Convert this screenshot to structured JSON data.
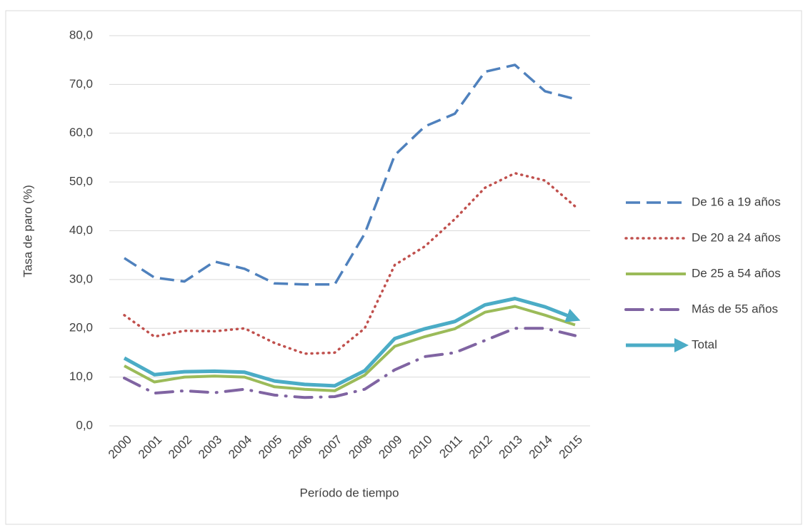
{
  "chart_data": {
    "type": "line",
    "y_label": "Tasa de paro (%)",
    "x_label": "Período de tiempo",
    "categories": [
      "2000",
      "2001",
      "2002",
      "2003",
      "2004",
      "2005",
      "2006",
      "2007",
      "2008",
      "2009",
      "2010",
      "2011",
      "2012",
      "2013",
      "2014",
      "2015"
    ],
    "ylim": [
      0,
      80
    ],
    "yticks": [
      {
        "value": 0,
        "label": "0,0"
      },
      {
        "value": 10,
        "label": "10,0"
      },
      {
        "value": 20,
        "label": "20,0"
      },
      {
        "value": 30,
        "label": "30,0"
      },
      {
        "value": 40,
        "label": "40,0"
      },
      {
        "value": 50,
        "label": "50,0"
      },
      {
        "value": 60,
        "label": "60,0"
      },
      {
        "value": 70,
        "label": "70,0"
      },
      {
        "value": 80,
        "label": "80,0"
      }
    ],
    "grid": true,
    "legend": "right",
    "series": [
      {
        "name": "De 16 a 19 años",
        "color": "#4f81bd",
        "style": "dashed",
        "values": [
          34.4,
          30.4,
          29.6,
          33.7,
          32.2,
          29.2,
          29.0,
          29.0,
          39.4,
          55.5,
          61.4,
          64.0,
          72.6,
          74.0,
          68.6,
          67.0
        ]
      },
      {
        "name": "De 20 a 24 años",
        "color": "#c0504d",
        "style": "dotted",
        "values": [
          22.7,
          18.3,
          19.5,
          19.4,
          20.0,
          17.0,
          14.8,
          15.0,
          20.0,
          33.0,
          36.8,
          42.4,
          48.8,
          51.8,
          50.3,
          45.0
        ]
      },
      {
        "name": "De 25 a 54 años",
        "color": "#9bbb59",
        "style": "solid",
        "values": [
          12.3,
          9.0,
          10.0,
          10.2,
          10.0,
          8.0,
          7.5,
          7.2,
          10.4,
          16.3,
          18.3,
          19.9,
          23.3,
          24.5,
          22.7,
          20.7
        ]
      },
      {
        "name": "Más de 55 años",
        "color": "#8064a2",
        "style": "dashdot",
        "values": [
          9.8,
          6.7,
          7.2,
          6.8,
          7.5,
          6.3,
          5.8,
          6.0,
          7.5,
          11.5,
          14.2,
          15.0,
          17.5,
          20.0,
          20.0,
          18.5
        ]
      },
      {
        "name": "Total",
        "color": "#4bacc6",
        "style": "arrow",
        "values": [
          13.9,
          10.5,
          11.1,
          11.2,
          11.0,
          9.2,
          8.5,
          8.2,
          11.3,
          17.9,
          19.9,
          21.4,
          24.8,
          26.1,
          24.4,
          22.0
        ]
      }
    ]
  }
}
